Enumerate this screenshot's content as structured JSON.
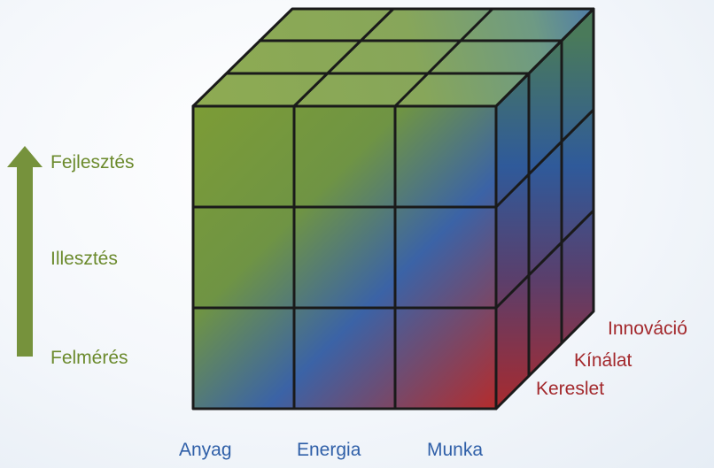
{
  "vertical_axis": {
    "levels": [
      "Fejlesztés",
      "Illesztés",
      "Felmérés"
    ],
    "arrow_color": "#76923c"
  },
  "horizontal_axis": {
    "items": [
      "Anyag",
      "Energia",
      "Munka"
    ],
    "color": "#2f5fa8"
  },
  "depth_axis": {
    "items": [
      "Innováció",
      "Kínálat",
      "Kereslet"
    ],
    "color": "#a3282c"
  },
  "cube": {
    "grid": "3x3x3",
    "gradient_colors": [
      "#7a9a35",
      "#3a62a4",
      "#b02a2a"
    ]
  }
}
